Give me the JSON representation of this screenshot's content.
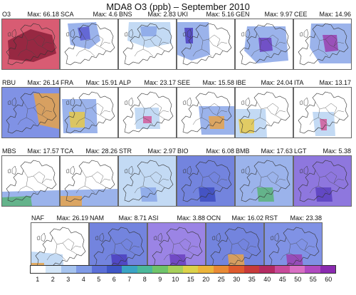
{
  "title": "MDA8 O3 (ppb) – September 2010",
  "panels": [
    {
      "name": "O3",
      "max_label": "Max: 66.18",
      "fill": "#d1405a",
      "fill2": "#8c1f3a",
      "extent": "full"
    },
    {
      "name": "SCA",
      "max_label": "Max: 4.6",
      "fill": "#8aa6e8",
      "fill2": "#5b5bd1",
      "extent": "north-west"
    },
    {
      "name": "BNS",
      "max_label": "Max: 2.83",
      "fill": "#b8d3f2",
      "fill2": "#8aa6e8",
      "extent": "north"
    },
    {
      "name": "UKI",
      "max_label": "Max: 5.16",
      "fill": "#8aa6e8",
      "fill2": "#4b3dbf",
      "extent": "west"
    },
    {
      "name": "GEN",
      "max_label": "Max: 9.97",
      "fill": "#8aa6e8",
      "fill2": "#6a3fbf",
      "extent": "central"
    },
    {
      "name": "CEE",
      "max_label": "Max: 14.96",
      "fill": "#8aa6e8",
      "fill2": "#9a3fb0",
      "extent": "east"
    },
    {
      "name": "RBU",
      "max_label": "Max: 26.14",
      "fill": "#6a7fe0",
      "fill2": "#e6a24a",
      "extent": "east-wide"
    },
    {
      "name": "FRA",
      "max_label": "Max: 15.91",
      "fill": "#8aa6e8",
      "fill2": "#e6c84a",
      "extent": "south-west"
    },
    {
      "name": "ALP",
      "max_label": "Max: 23.17",
      "fill": "#b8d3f2",
      "fill2": "#d15a9a",
      "extent": "alps"
    },
    {
      "name": "SEE",
      "max_label": "Max: 15.58",
      "fill": "#8aa6e8",
      "fill2": "#e6a24a",
      "extent": "south-east"
    },
    {
      "name": "IBE",
      "max_label": "Max: 24.04",
      "fill": "#b8d3f2",
      "fill2": "#e6c84a",
      "extent": "iberia"
    },
    {
      "name": "ITA",
      "max_label": "Max: 13.17",
      "fill": "#b8d3f2",
      "fill2": "#d15a9a",
      "extent": "italy"
    },
    {
      "name": "MBS",
      "max_label": "Max: 17.57",
      "fill": "#8aa6e8",
      "fill2": "#5bb37a",
      "extent": "med"
    },
    {
      "name": "TCA",
      "max_label": "Max: 28.26",
      "fill": "#8aa6e8",
      "fill2": "#e6a24a",
      "extent": "south-east-corner"
    },
    {
      "name": "STR",
      "max_label": "Max: 2.97",
      "fill": "#b8d3f2",
      "fill2": "#8aa6e8",
      "extent": "full-light"
    },
    {
      "name": "BIO",
      "max_label": "Max: 6.08",
      "fill": "#5a6fd8",
      "fill2": "#3d4bc0",
      "extent": "full-blue"
    },
    {
      "name": "BMB",
      "max_label": "Max: 17.63",
      "fill": "#8aa6e8",
      "fill2": "#5bb37a",
      "extent": "full-mixed"
    },
    {
      "name": "LGT",
      "max_label": "Max: 5.38",
      "fill": "#7a5fd8",
      "fill2": "#5a3fbf",
      "extent": "full-purple"
    },
    {
      "name": "NAF",
      "max_label": "Max: 26.19",
      "fill": "#b8d3f2",
      "fill2": "#e6a24a",
      "extent": "south-west-corner"
    },
    {
      "name": "NAM",
      "max_label": "Max: 8.71",
      "fill": "#5a6fd8",
      "fill2": "#4b3dbf",
      "extent": "full-blue"
    },
    {
      "name": "ASI",
      "max_label": "Max: 3.88",
      "fill": "#8a6fe0",
      "fill2": "#6a3fbf",
      "extent": "full-purple"
    },
    {
      "name": "OCN",
      "max_label": "Max: 16.02",
      "fill": "#5a6fd8",
      "fill2": "#e6a24a",
      "extent": "full-ocean"
    },
    {
      "name": "RST",
      "max_label": "Max: 23.38",
      "fill": "#6a7fe0",
      "fill2": "#9a3fb0",
      "extent": "full-blue"
    }
  ],
  "colorbar": {
    "colors": [
      "#ffffff",
      "#d4e6f8",
      "#a6c4ef",
      "#7f9ae6",
      "#5b6fd8",
      "#3f56c6",
      "#3aa3c4",
      "#4bb89a",
      "#6fc46a",
      "#a7d05a",
      "#dcd24a",
      "#ecb43a",
      "#e98a35",
      "#de5a2e",
      "#c83a3a",
      "#b32a62",
      "#c84a9a",
      "#d86fc4",
      "#b04ac0",
      "#8a2ab0"
    ],
    "ticks": [
      "1",
      "2",
      "3",
      "4",
      "5",
      "6",
      "7",
      "8",
      "9",
      "10",
      "15",
      "20",
      "25",
      "30",
      "35",
      "40",
      "45",
      "50",
      "55",
      "60"
    ]
  }
}
